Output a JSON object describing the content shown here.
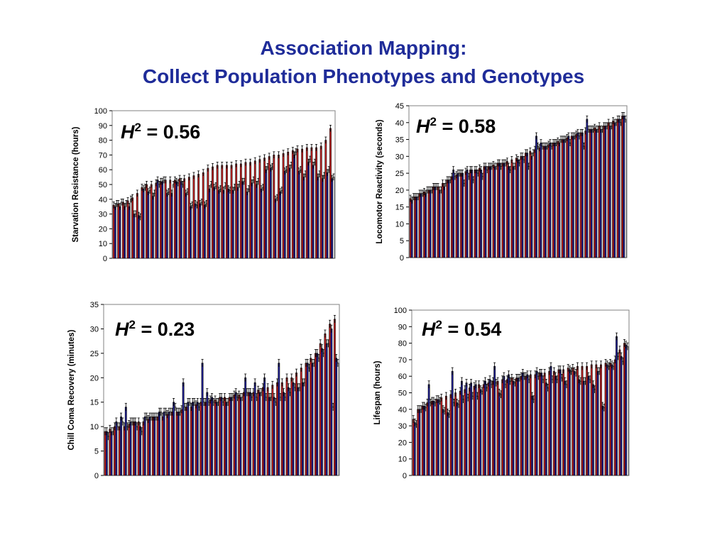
{
  "slide": {
    "title_line1": "Association Mapping:",
    "title_line2": "Collect Population Phenotypes and Genotypes"
  },
  "colors": {
    "title": "#1f2c99",
    "red_bar": "#cc2222",
    "blue_bar": "#1f1f99",
    "open_bar": "#ffffff"
  },
  "chart_data": [
    {
      "type": "bar",
      "ylabel": "Starvation Resistance (hours)",
      "ylim": [
        0,
        100
      ],
      "yticks": [
        0,
        10,
        20,
        30,
        40,
        50,
        60,
        70,
        80,
        90,
        100
      ],
      "annotation": {
        "symbol": "H",
        "exponent": "2",
        "value": "= 0.56"
      },
      "series": [
        {
          "style": "red-solid",
          "values": [
            36,
            37,
            38,
            39,
            41,
            44,
            48,
            50,
            50,
            51,
            52,
            53,
            53,
            53,
            54,
            54,
            55,
            56,
            57,
            58,
            61,
            62,
            63,
            63,
            63,
            63,
            64,
            64,
            65,
            65,
            66,
            67,
            68,
            69,
            70,
            70,
            71,
            72,
            73,
            74,
            74,
            75,
            75,
            75,
            76,
            80,
            88
          ]
        },
        {
          "style": "blue",
          "values": [
            35,
            35,
            35,
            35,
            30,
            29,
            47,
            45,
            42,
            53,
            52,
            44,
            44,
            52,
            52,
            44,
            35,
            37,
            37,
            36,
            47,
            48,
            46,
            46,
            47,
            46,
            48,
            52,
            45,
            51,
            50,
            47,
            60,
            61,
            40,
            45,
            59,
            61,
            70,
            59,
            55,
            65,
            63,
            55,
            54,
            58,
            54
          ]
        },
        {
          "style": "red-open",
          "values": [
            37,
            38,
            37,
            40,
            30,
            28,
            48,
            46,
            44,
            50,
            53,
            45,
            50,
            51,
            50,
            45,
            36,
            36,
            38,
            37,
            50,
            49,
            47,
            49,
            46,
            48,
            50,
            52,
            47,
            53,
            52,
            48,
            62,
            62,
            41,
            46,
            60,
            63,
            72,
            60,
            57,
            67,
            65,
            57,
            56,
            60,
            55
          ]
        }
      ]
    },
    {
      "type": "bar",
      "ylabel": "Locomotor Reactivity (seconds)",
      "ylim": [
        0,
        45
      ],
      "yticks": [
        0,
        5,
        10,
        15,
        20,
        25,
        30,
        35,
        40,
        45
      ],
      "annotation": {
        "symbol": "H",
        "exponent": "2",
        "value": "= 0.58"
      },
      "series": [
        {
          "style": "red-solid",
          "values": [
            17.5,
            18,
            19,
            19.5,
            20,
            21,
            21,
            22,
            23,
            24,
            24.5,
            25,
            25.5,
            26,
            26,
            26.5,
            27,
            27,
            27.5,
            28,
            28,
            28.5,
            29,
            29.5,
            30,
            31,
            31.5,
            32,
            32.5,
            33,
            33.5,
            34,
            34.5,
            35,
            35.5,
            36,
            36.5,
            37,
            37.5,
            38,
            38.5,
            39,
            39,
            40,
            40.5,
            41,
            42
          ]
        },
        {
          "style": "blue",
          "values": [
            17,
            18,
            19,
            19,
            20,
            21,
            20,
            21,
            23,
            26,
            25,
            25,
            26,
            26,
            26,
            26,
            27,
            27,
            27,
            28,
            28,
            27,
            27,
            29,
            30,
            31,
            30,
            36,
            34,
            33,
            34,
            34,
            34,
            35,
            36,
            36,
            37,
            37,
            41,
            38,
            38,
            38,
            39,
            39,
            40,
            41,
            42
          ]
        },
        {
          "style": "red-open",
          "values": [
            18,
            18,
            19,
            20,
            20,
            21,
            20,
            22,
            23,
            24,
            25,
            22,
            24,
            23,
            25,
            24,
            26,
            27,
            27,
            27,
            28,
            26,
            27,
            28,
            29,
            27,
            31,
            33,
            33,
            33,
            33,
            34,
            35,
            35,
            34,
            36,
            36,
            33,
            38,
            38,
            38,
            38,
            39,
            39,
            40,
            40,
            41
          ]
        }
      ]
    },
    {
      "type": "bar",
      "ylabel": "Chill Coma Recovery (minutes)",
      "ylim": [
        0,
        35
      ],
      "yticks": [
        0,
        5,
        10,
        15,
        20,
        25,
        30,
        35
      ],
      "annotation": {
        "symbol": "H",
        "exponent": "2",
        "value": "= 0.23"
      },
      "series": [
        {
          "style": "red-solid",
          "values": [
            9,
            9.5,
            10,
            10,
            10,
            10.5,
            11,
            11,
            11,
            11.5,
            12,
            12,
            12,
            12.5,
            13,
            13,
            13.5,
            14,
            14,
            14.5,
            15,
            15,
            15.5,
            15.5,
            16,
            16,
            16,
            16.5,
            16.5,
            17,
            17,
            17,
            17.5,
            18,
            18,
            18.5,
            19,
            19,
            20,
            20,
            21,
            22,
            23,
            24,
            25,
            27,
            29,
            31,
            32
          ]
        },
        {
          "style": "blue",
          "values": [
            9,
            9,
            11,
            12,
            14,
            11,
            11,
            10,
            12,
            12,
            12,
            13,
            13,
            13,
            15,
            13,
            19,
            15,
            15,
            15,
            23,
            17,
            16,
            15,
            16,
            15,
            16,
            17,
            16,
            20,
            17,
            19,
            17,
            20,
            16,
            16,
            23,
            17,
            18,
            19,
            18,
            19,
            23,
            23,
            25,
            26,
            27,
            30,
            24
          ]
        },
        {
          "style": "red-open",
          "values": [
            8,
            9,
            10,
            11,
            10,
            11,
            10,
            9,
            12,
            12,
            12,
            13,
            13,
            13,
            14,
            13,
            14,
            15,
            15,
            14,
            15,
            15,
            15,
            15,
            15,
            15,
            16,
            16,
            16,
            17,
            16,
            16,
            17,
            16,
            16,
            15,
            16,
            16,
            17,
            18,
            18,
            19,
            22,
            23,
            24,
            25,
            27,
            14,
            23
          ]
        }
      ]
    },
    {
      "type": "bar",
      "ylabel": "Lifespan (hours)",
      "ylim": [
        0,
        100
      ],
      "yticks": [
        0,
        10,
        20,
        30,
        40,
        50,
        60,
        70,
        80,
        90,
        100
      ],
      "annotation": {
        "symbol": "H",
        "exponent": "2",
        "value": "= 0.54"
      },
      "series": [
        {
          "style": "red-solid",
          "values": [
            34,
            40,
            42,
            44,
            45,
            46,
            47,
            48,
            49,
            50,
            51,
            52,
            53,
            54,
            55,
            55,
            56,
            57,
            57,
            58,
            58,
            59,
            59,
            60,
            60,
            61,
            61,
            62,
            62,
            63,
            63,
            64,
            64,
            65,
            65,
            66,
            66,
            66,
            67,
            67,
            67,
            68,
            68,
            70,
            76,
            80
          ]
        },
        {
          "style": "blue",
          "values": [
            32,
            40,
            42,
            55,
            45,
            46,
            40,
            38,
            63,
            44,
            57,
            56,
            56,
            55,
            52,
            57,
            58,
            66,
            50,
            60,
            61,
            57,
            59,
            62,
            61,
            48,
            63,
            62,
            56,
            66,
            60,
            64,
            57,
            64,
            63,
            58,
            57,
            60,
            55,
            63,
            42,
            67,
            67,
            84,
            72,
            79
          ]
        },
        {
          "style": "red-open",
          "values": [
            31,
            40,
            41,
            44,
            44,
            45,
            39,
            37,
            44,
            43,
            46,
            47,
            48,
            48,
            51,
            53,
            55,
            56,
            49,
            55,
            57,
            56,
            59,
            60,
            58,
            46,
            60,
            58,
            53,
            58,
            58,
            59,
            55,
            63,
            62,
            57,
            57,
            58,
            52,
            63,
            41,
            66,
            66,
            72,
            69,
            78
          ]
        }
      ]
    }
  ]
}
